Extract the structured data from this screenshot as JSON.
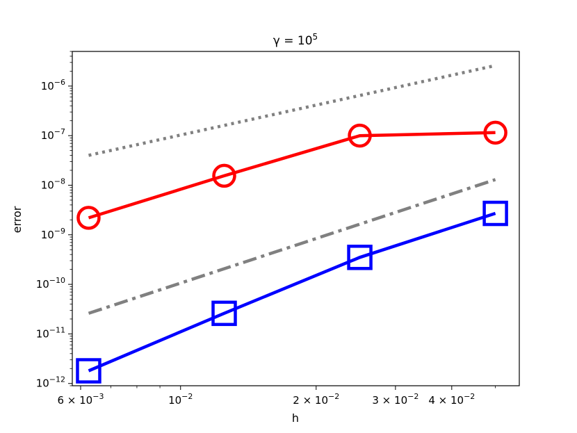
{
  "chart_data": {
    "type": "line",
    "title": "γ = 10",
    "title_sup": "5",
    "xlabel": "h",
    "ylabel": "error",
    "xscale": "log",
    "yscale": "log",
    "xlim": [
      0.00575,
      0.0565
    ],
    "ylim": [
      9e-13,
      5e-06
    ],
    "grid": false,
    "x_ticks": [
      {
        "value": 0.006,
        "base": "6 × 10",
        "exp": "−3"
      },
      {
        "value": 0.01,
        "base": "10",
        "exp": "−2"
      },
      {
        "value": 0.02,
        "base": "2 × 10",
        "exp": "−2"
      },
      {
        "value": 0.03,
        "base": "3 × 10",
        "exp": "−2"
      },
      {
        "value": 0.04,
        "base": "4 × 10",
        "exp": "−2"
      }
    ],
    "y_ticks": [
      {
        "value": 1e-12,
        "base": "10",
        "exp": "−12"
      },
      {
        "value": 1e-11,
        "base": "10",
        "exp": "−11"
      },
      {
        "value": 1e-10,
        "base": "10",
        "exp": "−10"
      },
      {
        "value": 1e-09,
        "base": "10",
        "exp": "−9"
      },
      {
        "value": 1e-08,
        "base": "10",
        "exp": "−8"
      },
      {
        "value": 1e-07,
        "base": "10",
        "exp": "−7"
      },
      {
        "value": 1e-06,
        "base": "10",
        "exp": "−6"
      }
    ],
    "series": [
      {
        "color": "#ff0000",
        "line_style": "solid",
        "marker": "circle",
        "x": [
          0.00625,
          0.0125,
          0.025,
          0.05
        ],
        "y": [
          2.2e-09,
          1.55e-08,
          1e-07,
          1.15e-07
        ]
      },
      {
        "color": "#0000ff",
        "line_style": "solid",
        "marker": "square",
        "x": [
          0.00625,
          0.0125,
          0.025,
          0.05
        ],
        "y": [
          1.8e-12,
          2.6e-11,
          3.5e-10,
          2.7e-09
        ]
      },
      {
        "color": "#808080",
        "line_style": "dotted",
        "marker": "none",
        "x": [
          0.00625,
          0.05
        ],
        "y": [
          4e-08,
          2.6e-06
        ]
      },
      {
        "color": "#808080",
        "line_style": "dashdot",
        "marker": "none",
        "x": [
          0.00625,
          0.05
        ],
        "y": [
          2.6e-11,
          1.3e-08
        ]
      }
    ]
  }
}
